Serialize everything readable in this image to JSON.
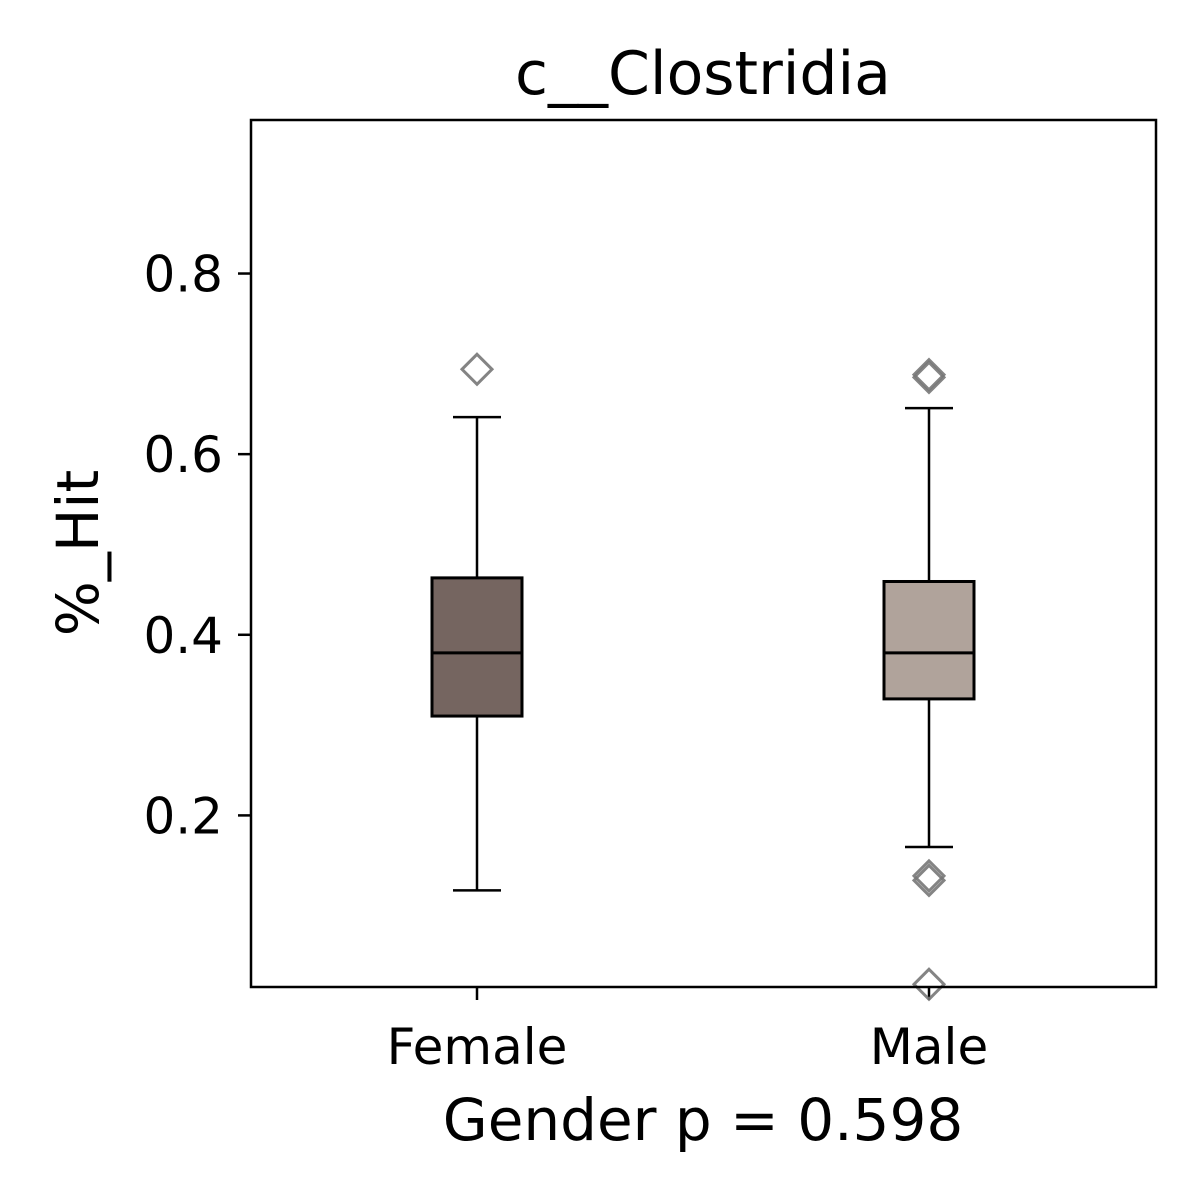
{
  "chart_data": {
    "type": "box",
    "title": "c__Clostridia",
    "xlabel": "Gender p = 0.598",
    "ylabel": "%_Hit",
    "ylim": [
      0.01,
      0.97
    ],
    "yticks": [
      0.2,
      0.4,
      0.6,
      0.8
    ],
    "ytick_labels": [
      "0.2",
      "0.4",
      "0.6",
      "0.8"
    ],
    "grid": false,
    "categories": [
      "Female",
      "Male"
    ],
    "boxes": [
      {
        "category": "Female",
        "whisker_low": 0.117,
        "q1": 0.31,
        "median": 0.38,
        "q3": 0.463,
        "whisker_high": 0.641,
        "outliers": [
          0.694
        ],
        "color": "#756560"
      },
      {
        "category": "Male",
        "whisker_low": 0.165,
        "q1": 0.329,
        "median": 0.38,
        "q3": 0.459,
        "whisker_high": 0.651,
        "outliers": [
          0.688,
          0.685,
          0.133,
          0.128,
          0.013
        ],
        "color": "#b0a39b"
      }
    ],
    "outlier_marker": "diamond",
    "outlier_color": "#777777"
  }
}
